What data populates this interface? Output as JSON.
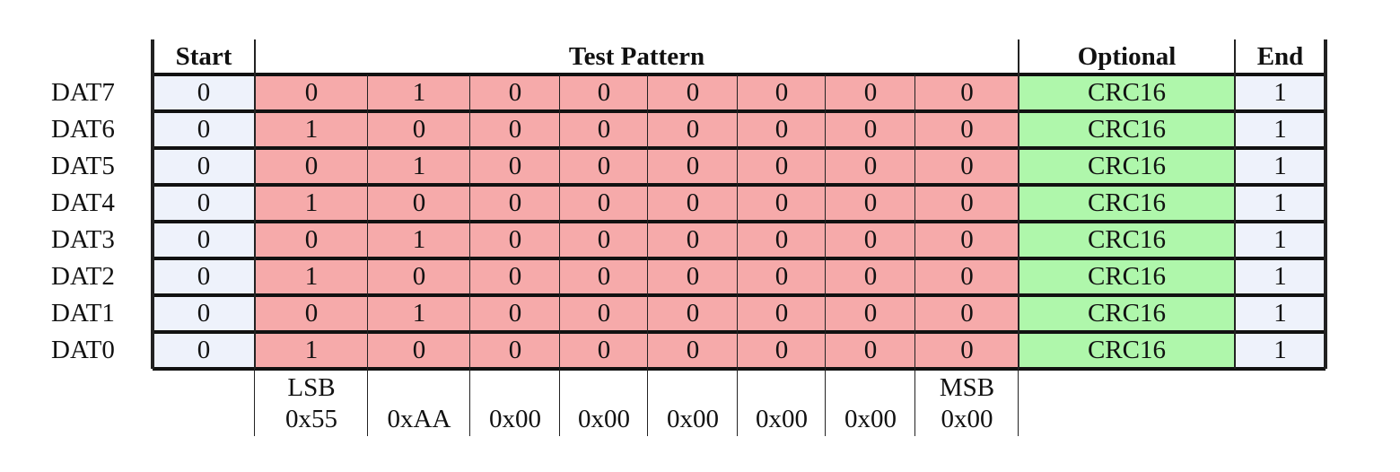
{
  "headers": {
    "start": "Start",
    "test_pattern": "Test Pattern",
    "optional": "Optional",
    "end": "End"
  },
  "rows": [
    {
      "label": "DAT7",
      "start": "0",
      "pattern": [
        "0",
        "1",
        "0",
        "0",
        "0",
        "0",
        "0",
        "0"
      ],
      "optional": "CRC16",
      "end": "1"
    },
    {
      "label": "DAT6",
      "start": "0",
      "pattern": [
        "1",
        "0",
        "0",
        "0",
        "0",
        "0",
        "0",
        "0"
      ],
      "optional": "CRC16",
      "end": "1"
    },
    {
      "label": "DAT5",
      "start": "0",
      "pattern": [
        "0",
        "1",
        "0",
        "0",
        "0",
        "0",
        "0",
        "0"
      ],
      "optional": "CRC16",
      "end": "1"
    },
    {
      "label": "DAT4",
      "start": "0",
      "pattern": [
        "1",
        "0",
        "0",
        "0",
        "0",
        "0",
        "0",
        "0"
      ],
      "optional": "CRC16",
      "end": "1"
    },
    {
      "label": "DAT3",
      "start": "0",
      "pattern": [
        "0",
        "1",
        "0",
        "0",
        "0",
        "0",
        "0",
        "0"
      ],
      "optional": "CRC16",
      "end": "1"
    },
    {
      "label": "DAT2",
      "start": "0",
      "pattern": [
        "1",
        "0",
        "0",
        "0",
        "0",
        "0",
        "0",
        "0"
      ],
      "optional": "CRC16",
      "end": "1"
    },
    {
      "label": "DAT1",
      "start": "0",
      "pattern": [
        "0",
        "1",
        "0",
        "0",
        "0",
        "0",
        "0",
        "0"
      ],
      "optional": "CRC16",
      "end": "1"
    },
    {
      "label": "DAT0",
      "start": "0",
      "pattern": [
        "1",
        "0",
        "0",
        "0",
        "0",
        "0",
        "0",
        "0"
      ],
      "optional": "CRC16",
      "end": "1"
    }
  ],
  "footer": {
    "lsb_label": "LSB",
    "msb_label": "MSB",
    "bytes": [
      "0x55",
      "0xAA",
      "0x00",
      "0x00",
      "0x00",
      "0x00",
      "0x00",
      "0x00"
    ]
  },
  "colors": {
    "start_end_fill": "#eef2fb",
    "pattern_fill": "#f6aaaa",
    "optional_fill": "#aff7ab"
  }
}
